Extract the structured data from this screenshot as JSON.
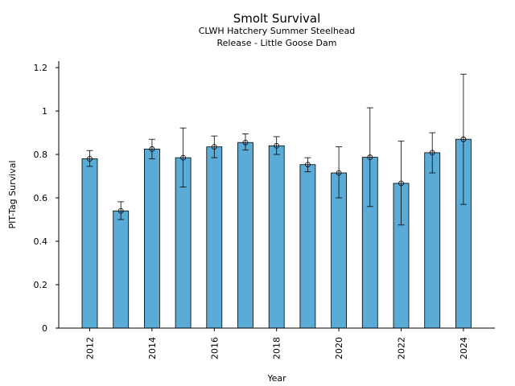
{
  "chart_data": {
    "type": "bar",
    "title": "Smolt Survival",
    "subtitle_lines": [
      "CLWH Hatchery Summer Steelhead",
      "Release - Little Goose Dam"
    ],
    "xlabel": "Year",
    "ylabel": "PIT-Tag Survival",
    "x": [
      2012,
      2013,
      2014,
      2015,
      2016,
      2017,
      2018,
      2019,
      2020,
      2021,
      2022,
      2023,
      2024
    ],
    "values": [
      0.78,
      0.54,
      0.825,
      0.785,
      0.835,
      0.855,
      0.84,
      0.753,
      0.715,
      0.787,
      0.667,
      0.808,
      0.87
    ],
    "error_low": [
      0.745,
      0.5,
      0.78,
      0.65,
      0.785,
      0.82,
      0.8,
      0.72,
      0.6,
      0.56,
      0.475,
      0.715,
      0.57
    ],
    "error_high": [
      0.818,
      0.582,
      0.87,
      0.922,
      0.885,
      0.895,
      0.882,
      0.785,
      0.835,
      1.015,
      0.862,
      0.9,
      1.17
    ],
    "xticks": [
      2012,
      2014,
      2016,
      2018,
      2020,
      2022,
      2024
    ],
    "yticks": [
      0,
      0.2,
      0.4,
      0.6,
      0.8,
      1,
      1.2
    ],
    "ylim": [
      0,
      1.23
    ],
    "grid": false,
    "bar_color": "#5aabd6",
    "edge_color": "#000000"
  }
}
